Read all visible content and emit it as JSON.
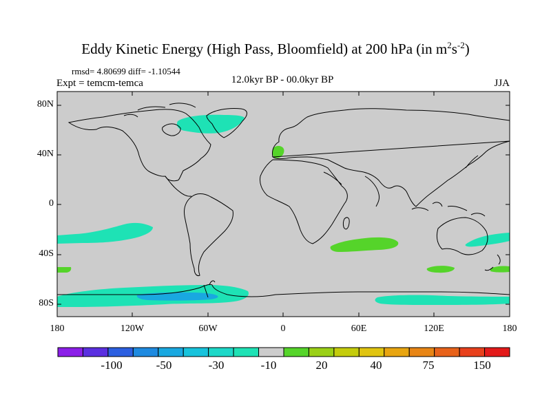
{
  "title": {
    "main": "Eddy Kinetic Energy (High Pass, Bloomfield) at 200 hPa (in m",
    "sup1": "2",
    "mid": "s",
    "sup2": "-2",
    "end": ")"
  },
  "stats": "rmsd= 4.80699 diff= -1.10544",
  "experiment": "Expt = temcm-temca",
  "period": "12.0kyr BP - 00.0kyr BP",
  "season": "JJA",
  "map": {
    "y_labels": [
      "80N",
      "40N",
      "0",
      "40S",
      "80S"
    ],
    "x_labels": [
      "180",
      "120W",
      "60W",
      "0",
      "60E",
      "120E",
      "180"
    ]
  },
  "colorbar": {
    "colors": [
      "#8b1fe8",
      "#5a2fe0",
      "#2c5fe0",
      "#1e8ae0",
      "#19a8e0",
      "#17c3dc",
      "#1dd8c8",
      "#1ee2b5",
      "#cccccc",
      "#55d42a",
      "#9ad016",
      "#c4cc0c",
      "#e0c410",
      "#e8a510",
      "#e88515",
      "#e8621a",
      "#e8401c",
      "#e31a1a"
    ],
    "labels": [
      "-100",
      "-50",
      "-30",
      "-10",
      "20",
      "40",
      "75",
      "150"
    ]
  }
}
